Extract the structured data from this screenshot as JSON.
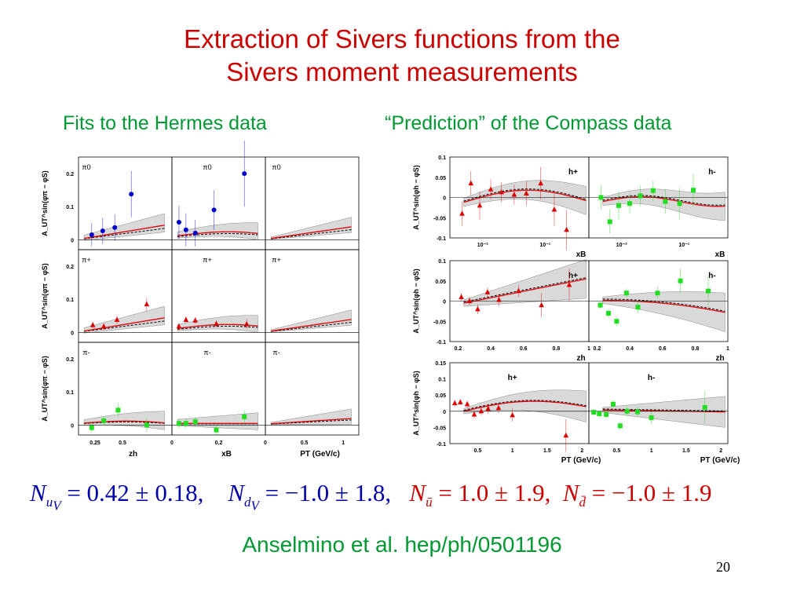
{
  "title": {
    "line1": "Extraction of Sivers functions from the",
    "line2": "Sivers moment measurements"
  },
  "subtitles": {
    "left": "Fits to the Hermes data",
    "right": "“Prediction” of the Compass data"
  },
  "formula": {
    "n_uv": "N",
    "n_uv_sub": "u",
    "n_uv_subsub": "V",
    "n_uv_value": " = 0.42 ± 0.18,",
    "n_dv": "N",
    "n_dv_sub": "d",
    "n_dv_subsub": "V",
    "n_dv_value": " = −1.0 ± 1.8,",
    "n_ubar": "N",
    "n_ubar_sub": "ū",
    "n_ubar_value": " = 1.0 ± 1.9,",
    "n_dbar": "N",
    "n_dbar_sub": "d̄",
    "n_dbar_value": " = −1.0 ± 1.9"
  },
  "citation": "Anselmino et al. hep/ph/0501196",
  "page_number": "20",
  "colors": {
    "title": "#cc0000",
    "subtitle": "#009933",
    "fit_line": "#dd0000",
    "band": "#d9d9d9",
    "pi0_points": "#0000cc",
    "positive_points": "#dd0000",
    "negative_points": "#22dd22"
  },
  "chart_data": [
    {
      "type": "scatter",
      "name": "hermes",
      "rows": [
        {
          "label": "π0",
          "ylabel": "A_UT^sin(φπ − φS)",
          "color": "#0000cc",
          "marker": "circle"
        },
        {
          "label": "π+",
          "ylabel": "A_UT^sin(φπ − φS)",
          "color": "#dd0000",
          "marker": "triangle"
        },
        {
          "label": "π-",
          "ylabel": "A_UT^sin(φπ − φS)",
          "color": "#22dd22",
          "marker": "square"
        }
      ],
      "yticks": [
        "0.2",
        "0.1",
        "0"
      ],
      "ylim": [
        -0.03,
        0.25
      ],
      "columns": [
        {
          "xlabel": "zh",
          "xticks": [
            0.25,
            0.5
          ],
          "xtick_labels": [
            "0.25",
            "0.5"
          ],
          "xlim": [
            0.1,
            0.95
          ]
        },
        {
          "xlabel": "xB",
          "xticks": [
            0,
            0.2
          ],
          "xtick_labels": [
            "0",
            "0.2"
          ],
          "xlim": [
            0,
            0.4
          ]
        },
        {
          "xlabel": "PT (GeV/c)",
          "xticks": [
            0,
            0.5,
            1
          ],
          "xtick_labels": [
            "0",
            "0.5",
            "1"
          ],
          "xlim": [
            0,
            1.2
          ]
        }
      ],
      "points": [
        [
          [
            {
              "x": 0.22,
              "y": 0.015,
              "e": 0.035
            },
            {
              "x": 0.32,
              "y": 0.027,
              "e": 0.04
            },
            {
              "x": 0.43,
              "y": 0.037,
              "e": 0.04
            },
            {
              "x": 0.58,
              "y": 0.138,
              "e": 0.07
            }
          ],
          [
            {
              "x": 0.03,
              "y": 0.053,
              "e": 0.05
            },
            {
              "x": 0.06,
              "y": 0.03,
              "e": 0.05
            },
            {
              "x": 0.1,
              "y": 0.02,
              "e": 0.04
            },
            {
              "x": 0.18,
              "y": 0.09,
              "e": 0.06
            },
            {
              "x": 0.31,
              "y": 0.2,
              "e": 0.1
            }
          ],
          []
        ],
        [
          [
            {
              "x": 0.23,
              "y": 0.022,
              "e": 0.01
            },
            {
              "x": 0.33,
              "y": 0.018,
              "e": 0.01
            },
            {
              "x": 0.45,
              "y": 0.038,
              "e": 0.012
            },
            {
              "x": 0.72,
              "y": 0.085,
              "e": 0.02
            }
          ],
          [
            {
              "x": 0.03,
              "y": 0.018,
              "e": 0.01
            },
            {
              "x": 0.06,
              "y": 0.038,
              "e": 0.01
            },
            {
              "x": 0.1,
              "y": 0.036,
              "e": 0.01
            },
            {
              "x": 0.19,
              "y": 0.026,
              "e": 0.01
            },
            {
              "x": 0.32,
              "y": 0.025,
              "e": 0.015
            }
          ],
          []
        ],
        [
          [
            {
              "x": 0.22,
              "y": -0.008,
              "e": 0.015
            },
            {
              "x": 0.33,
              "y": 0.013,
              "e": 0.015
            },
            {
              "x": 0.46,
              "y": 0.045,
              "e": 0.02
            },
            {
              "x": 0.72,
              "y": 0.0,
              "e": 0.02
            }
          ],
          [
            {
              "x": 0.03,
              "y": 0.005,
              "e": 0.015
            },
            {
              "x": 0.06,
              "y": 0.005,
              "e": 0.015
            },
            {
              "x": 0.1,
              "y": 0.01,
              "e": 0.015
            },
            {
              "x": 0.19,
              "y": -0.015,
              "e": 0.015
            },
            {
              "x": 0.31,
              "y": 0.025,
              "e": 0.02
            }
          ],
          []
        ]
      ]
    },
    {
      "type": "scatter",
      "name": "compass",
      "panels": [
        "h+",
        "h-"
      ],
      "rows": [
        {
          "ylabel": "A_UT^sin(φh − φS)",
          "xlabel": "xB",
          "xscale": "log",
          "xlim": [
            0.003,
            0.5
          ],
          "xticks": [
            0.01,
            0.1
          ],
          "xtick_labels": [
            "10⁻²",
            "10⁻¹"
          ],
          "ylim": [
            -0.1,
            0.1
          ],
          "yticks": [
            0.1,
            0.05,
            0,
            -0.05,
            -0.1
          ],
          "ytick_labels": [
            "0.1",
            "0.05",
            "0",
            "-0.05",
            "-0.1"
          ],
          "h+": [
            {
              "x": 0.0047,
              "y": -0.04,
              "e": 0.03
            },
            {
              "x": 0.0065,
              "y": 0.035,
              "e": 0.03
            },
            {
              "x": 0.009,
              "y": -0.02,
              "e": 0.035
            },
            {
              "x": 0.0135,
              "y": 0.02,
              "e": 0.025
            },
            {
              "x": 0.02,
              "y": 0.013,
              "e": 0.025
            },
            {
              "x": 0.032,
              "y": 0.007,
              "e": 0.025
            },
            {
              "x": 0.05,
              "y": 0.01,
              "e": 0.03
            },
            {
              "x": 0.085,
              "y": 0.035,
              "e": 0.04
            },
            {
              "x": 0.14,
              "y": -0.03,
              "e": 0.04
            },
            {
              "x": 0.22,
              "y": -0.08,
              "e": 0.05
            }
          ],
          "h-": [
            {
              "x": 0.0047,
              "y": 0.0,
              "e": 0.03
            },
            {
              "x": 0.0065,
              "y": -0.06,
              "e": 0.03
            },
            {
              "x": 0.009,
              "y": -0.02,
              "e": 0.035
            },
            {
              "x": 0.0135,
              "y": -0.015,
              "e": 0.025
            },
            {
              "x": 0.02,
              "y": 0.004,
              "e": 0.025
            },
            {
              "x": 0.032,
              "y": 0.017,
              "e": 0.025
            },
            {
              "x": 0.05,
              "y": -0.01,
              "e": 0.03
            },
            {
              "x": 0.085,
              "y": -0.015,
              "e": 0.04
            },
            {
              "x": 0.14,
              "y": 0.018,
              "e": 0.04
            }
          ]
        },
        {
          "ylabel": "A_UT^sin(φh − φS)",
          "xlabel": "zh",
          "xscale": "linear",
          "xlim": [
            0.15,
            1.0
          ],
          "xticks": [
            0.2,
            0.4,
            0.6,
            0.8,
            1.0
          ],
          "xtick_labels": [
            "0.2",
            "0.4",
            "0.6",
            "0.8",
            "1"
          ],
          "ylim": [
            -0.1,
            0.1
          ],
          "yticks": [
            0.1,
            0.05,
            0,
            -0.05,
            -0.1
          ],
          "ytick_labels": [
            "0.1",
            "0.05",
            "0",
            "-0.05",
            "-0.1"
          ],
          "h+": [
            {
              "x": 0.22,
              "y": 0.01,
              "e": 0.01
            },
            {
              "x": 0.27,
              "y": 0.0,
              "e": 0.01
            },
            {
              "x": 0.32,
              "y": -0.02,
              "e": 0.012
            },
            {
              "x": 0.38,
              "y": 0.022,
              "e": 0.012
            },
            {
              "x": 0.45,
              "y": 0.003,
              "e": 0.015
            },
            {
              "x": 0.57,
              "y": 0.025,
              "e": 0.015
            },
            {
              "x": 0.71,
              "y": -0.01,
              "e": 0.03
            },
            {
              "x": 0.88,
              "y": 0.04,
              "e": 0.04
            }
          ],
          "h-": [
            {
              "x": 0.22,
              "y": -0.01,
              "e": 0.01
            },
            {
              "x": 0.27,
              "y": -0.03,
              "e": 0.01
            },
            {
              "x": 0.32,
              "y": -0.05,
              "e": 0.012
            },
            {
              "x": 0.38,
              "y": 0.02,
              "e": 0.012
            },
            {
              "x": 0.45,
              "y": -0.015,
              "e": 0.015
            },
            {
              "x": 0.57,
              "y": 0.02,
              "e": 0.015
            },
            {
              "x": 0.71,
              "y": 0.05,
              "e": 0.03
            },
            {
              "x": 0.88,
              "y": 0.025,
              "e": 0.04
            }
          ]
        },
        {
          "ylabel": "A_UT^sin(φh − φS)",
          "xlabel": "PT (GeV/c)",
          "xscale": "linear",
          "xlim": [
            0.1,
            2.1
          ],
          "xticks": [
            0.5,
            1.0,
            1.5,
            2.0
          ],
          "xtick_labels": [
            "0.5",
            "1",
            "1.5",
            "2"
          ],
          "ylim": [
            -0.1,
            0.15
          ],
          "yticks": [
            0.15,
            0.1,
            0.05,
            0,
            -0.05,
            -0.1
          ],
          "ytick_labels": [
            "0.15",
            "0.1",
            "0.05",
            "0",
            "-0.05",
            "-0.1"
          ],
          "h+": [
            {
              "x": 0.17,
              "y": 0.025,
              "e": 0.01
            },
            {
              "x": 0.25,
              "y": 0.028,
              "e": 0.01
            },
            {
              "x": 0.35,
              "y": 0.022,
              "e": 0.012
            },
            {
              "x": 0.45,
              "y": -0.01,
              "e": 0.012
            },
            {
              "x": 0.55,
              "y": 0.0,
              "e": 0.012
            },
            {
              "x": 0.65,
              "y": 0.008,
              "e": 0.015
            },
            {
              "x": 0.8,
              "y": 0.01,
              "e": 0.015
            },
            {
              "x": 1.0,
              "y": -0.012,
              "e": 0.02
            },
            {
              "x": 1.77,
              "y": -0.075,
              "e": 0.05
            }
          ],
          "h-": [
            {
              "x": 0.17,
              "y": -0.003,
              "e": 0.01
            },
            {
              "x": 0.25,
              "y": -0.008,
              "e": 0.01
            },
            {
              "x": 0.35,
              "y": -0.01,
              "e": 0.012
            },
            {
              "x": 0.45,
              "y": 0.022,
              "e": 0.012
            },
            {
              "x": 0.55,
              "y": -0.045,
              "e": 0.012
            },
            {
              "x": 0.65,
              "y": 0.0,
              "e": 0.015
            },
            {
              "x": 0.8,
              "y": -0.002,
              "e": 0.015
            },
            {
              "x": 1.0,
              "y": -0.02,
              "e": 0.02
            },
            {
              "x": 1.77,
              "y": 0.012,
              "e": 0.05
            }
          ]
        }
      ]
    }
  ]
}
